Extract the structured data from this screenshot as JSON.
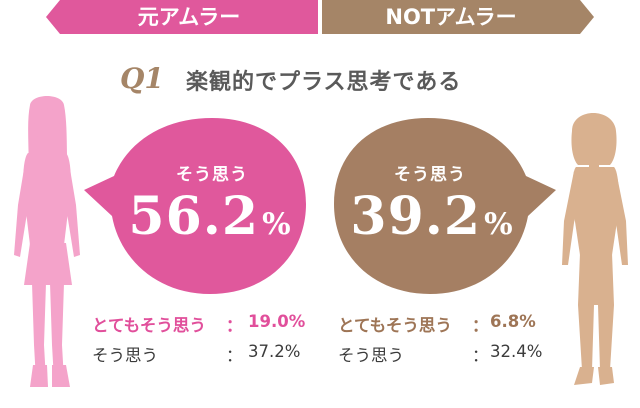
{
  "tabs": {
    "left_label": "元アムラー",
    "right_label": "NOTアムラー",
    "left_color": "#e0589c",
    "right_color": "#a58567"
  },
  "question": {
    "number": "Q1",
    "text": "楽観的でプラス思考である"
  },
  "left_panel": {
    "bubble_color": "#e0589c",
    "figure_color": "#f4a3ca",
    "bubble_label": "そう思う",
    "bubble_value": "56.2",
    "bubble_unit": "%",
    "rows": [
      {
        "label": "とてもそう思う",
        "colon": "：",
        "value": "19.0%"
      },
      {
        "label": "そう思う",
        "colon": "：",
        "value": "37.2%"
      }
    ]
  },
  "right_panel": {
    "bubble_color": "#a57f63",
    "figure_color": "#d9b18f",
    "bubble_label": "そう思う",
    "bubble_value": "39.2",
    "bubble_unit": "%",
    "rows": [
      {
        "label": "とてもそう思う",
        "colon": "：",
        "value": "6.8%"
      },
      {
        "label": "そう思う",
        "colon": "：",
        "value": "32.4%"
      }
    ]
  },
  "icons": {
    "left_figure": "woman-silhouette-icon",
    "right_figure": "woman-silhouette-icon"
  }
}
